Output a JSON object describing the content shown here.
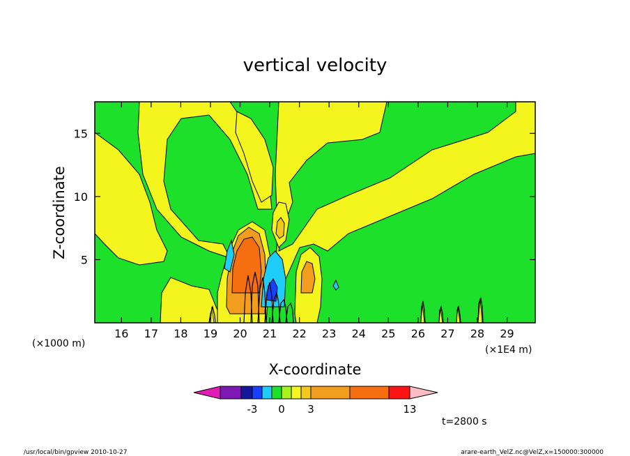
{
  "chart_data": {
    "type": "heatmap",
    "title": "vertical velocity",
    "xlabel": "X-coordinate",
    "ylabel": "Z-coordinate",
    "x_ticks": [
      "16",
      "17",
      "18",
      "19",
      "20",
      "21",
      "22",
      "23",
      "24",
      "25",
      "26",
      "27",
      "28",
      "29"
    ],
    "y_ticks": [
      "5",
      "10",
      "15"
    ],
    "x_scale_note": "(×1E4 m)",
    "y_scale_note": "(×1000 m)",
    "xlim": [
      15.1,
      29.95
    ],
    "ylim": [
      0,
      17.5
    ],
    "colorbar": {
      "colors": [
        "#e01cb4",
        "#7d17b5",
        "#16169a",
        "#1a40ff",
        "#1fcdfa",
        "#1ce02a",
        "#a6f21c",
        "#f5f51e",
        "#f3c81c",
        "#f39d1e",
        "#f56f10",
        "#fd1313",
        "#f77d7d",
        "#fcbcc4"
      ],
      "tick_labels": [
        "-3",
        "0",
        "3",
        "13"
      ]
    },
    "time_label": "t=2800 s",
    "regions": [
      {
        "kind": "upward-strong",
        "center_x": 20.3,
        "center_z": 5.8,
        "peak": "13"
      },
      {
        "kind": "downward",
        "center_x": 21.0,
        "center_z": 3.6,
        "peak": "-3"
      },
      {
        "kind": "upward-weak",
        "center_x": 21.4,
        "center_z": 7.8
      },
      {
        "kind": "upward-moderate",
        "center_x": 22.2,
        "center_z": 3.5
      }
    ]
  },
  "footer": {
    "left": "/usr/local/bin/gpview   2010-10-27",
    "right": "arare-earth_VelZ.nc@VelZ,x=150000:300000"
  }
}
